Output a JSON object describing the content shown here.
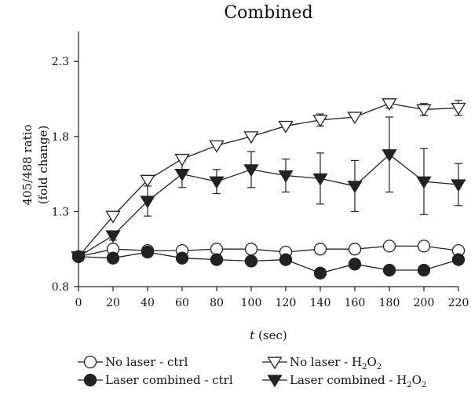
{
  "chart_data": {
    "type": "line",
    "title": "Combined",
    "xlabel": {
      "var": "t",
      "unit": " (sec)"
    },
    "ylabel": [
      "405/488 ratio",
      "(fold change)"
    ],
    "xlim": [
      0,
      220
    ],
    "ylim": [
      0.8,
      2.5
    ],
    "x": [
      0,
      20,
      40,
      60,
      80,
      100,
      120,
      140,
      160,
      180,
      200,
      220
    ],
    "xticks": [
      "0",
      "20",
      "40",
      "60",
      "80",
      "100",
      "120",
      "140",
      "160",
      "180",
      "200",
      "220"
    ],
    "yticks": [
      0.8,
      1.3,
      1.8,
      2.3
    ],
    "ytick_labels": [
      "0.8",
      "1.3",
      "1.8",
      "2.3"
    ],
    "grid": false,
    "legend_position": "bottom",
    "series": [
      {
        "name": "No laser - ctrl",
        "marker": "circle-open",
        "color": "#222222",
        "values": [
          1.0,
          1.05,
          1.04,
          1.04,
          1.05,
          1.05,
          1.03,
          1.05,
          1.05,
          1.07,
          1.07,
          1.04
        ],
        "errors": [
          0.01,
          0.01,
          0.01,
          0.01,
          0.01,
          0.01,
          0.01,
          0.01,
          0.01,
          0.01,
          0.01,
          0.01
        ]
      },
      {
        "name": "Laser combined - ctrl",
        "marker": "circle-filled",
        "color": "#222222",
        "values": [
          1.0,
          0.99,
          1.03,
          0.99,
          0.98,
          0.97,
          0.98,
          0.89,
          0.95,
          0.91,
          0.91,
          0.98
        ],
        "errors": [
          0.01,
          0.01,
          0.01,
          0.01,
          0.01,
          0.01,
          0.01,
          0.01,
          0.01,
          0.01,
          0.01,
          0.01
        ]
      },
      {
        "name": "No laser - H",
        "name_sub": "2",
        "name_end": "O",
        "name_sub2": "2",
        "marker": "triangle-down-open",
        "color": "#222222",
        "values": [
          1.0,
          1.27,
          1.51,
          1.65,
          1.74,
          1.8,
          1.87,
          1.91,
          1.93,
          2.02,
          1.98,
          1.99
        ],
        "errors": [
          0.01,
          0.01,
          0.02,
          0.02,
          0.02,
          0.02,
          0.02,
          0.04,
          0.02,
          0.03,
          0.04,
          0.05
        ]
      },
      {
        "name": "Laser combined - H",
        "name_sub": "2",
        "name_end": "O",
        "name_sub2": "2",
        "marker": "triangle-down-filled",
        "color": "#222222",
        "values": [
          1.0,
          1.14,
          1.37,
          1.55,
          1.5,
          1.58,
          1.54,
          1.52,
          1.47,
          1.68,
          1.5,
          1.48
        ],
        "errors": [
          0.02,
          0.03,
          0.1,
          0.09,
          0.08,
          0.12,
          0.11,
          0.17,
          0.17,
          0.25,
          0.22,
          0.14
        ]
      }
    ]
  }
}
